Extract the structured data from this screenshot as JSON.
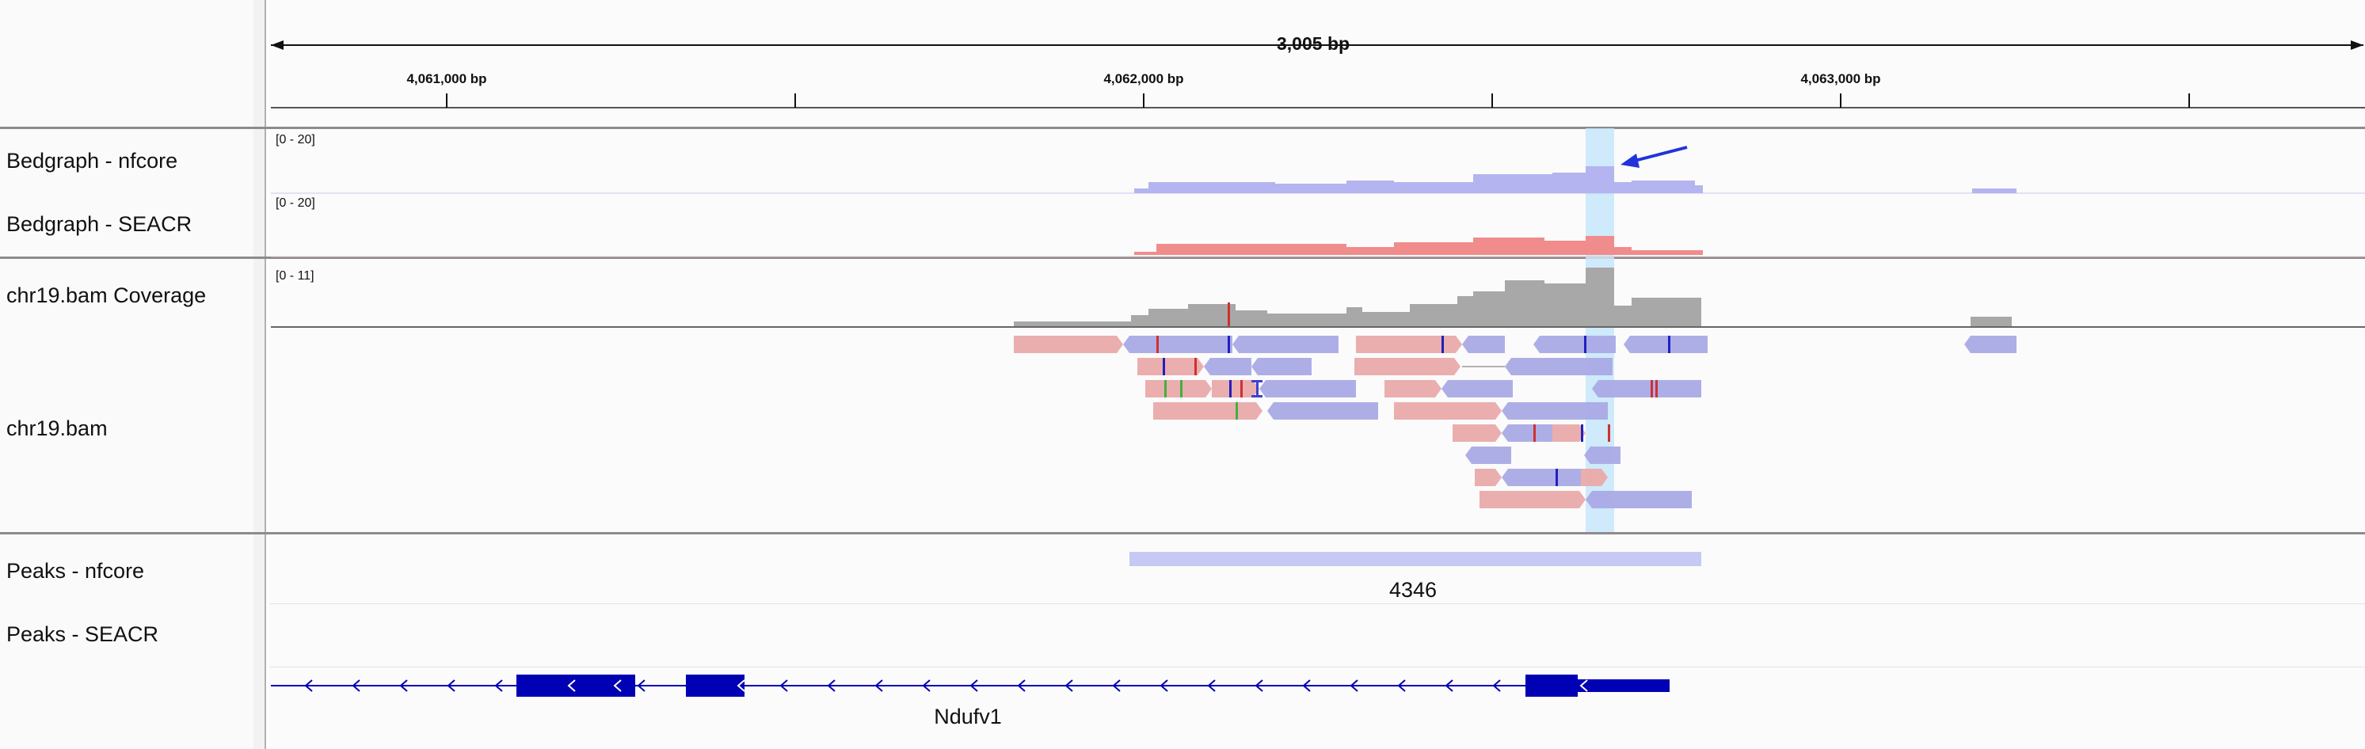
{
  "ruler": {
    "span_label": "3,005 bp",
    "ticks": [
      {
        "label": "4,061,000 bp",
        "pos": 4061000
      },
      {
        "label": "",
        "pos": 4061500
      },
      {
        "label": "4,062,000 bp",
        "pos": 4062000
      },
      {
        "label": "",
        "pos": 4062500
      },
      {
        "label": "4,063,000 bp",
        "pos": 4063000
      },
      {
        "label": "",
        "pos": 4063500
      }
    ]
  },
  "tracks": {
    "bedgraph_nfcore": {
      "name": "Bedgraph - nfcore",
      "range": "[0 - 20]",
      "color": "#b4b4f0"
    },
    "bedgraph_seacr": {
      "name": "Bedgraph - SEACR",
      "range": "[0 - 20]",
      "color": "#f08c8c"
    },
    "coverage": {
      "name": "chr19.bam Coverage",
      "range": "[0 - 11]",
      "color": "#a8a8a8"
    },
    "alignments": {
      "name": "chr19.bam",
      "forward_color": "#eaaaaa",
      "reverse_color": "#aaaae6"
    },
    "peaks_nfcore": {
      "name": "Peaks - nfcore",
      "peak_label": "4346",
      "color": "#c8c8f4"
    },
    "peaks_seacr": {
      "name": "Peaks - SEACR"
    },
    "gene": {
      "name": "Ndufv1",
      "color": "#0000b4"
    }
  },
  "highlight": {
    "color": "#c6e6fa"
  },
  "annotation_arrow": {
    "color": "#2233dd"
  }
}
